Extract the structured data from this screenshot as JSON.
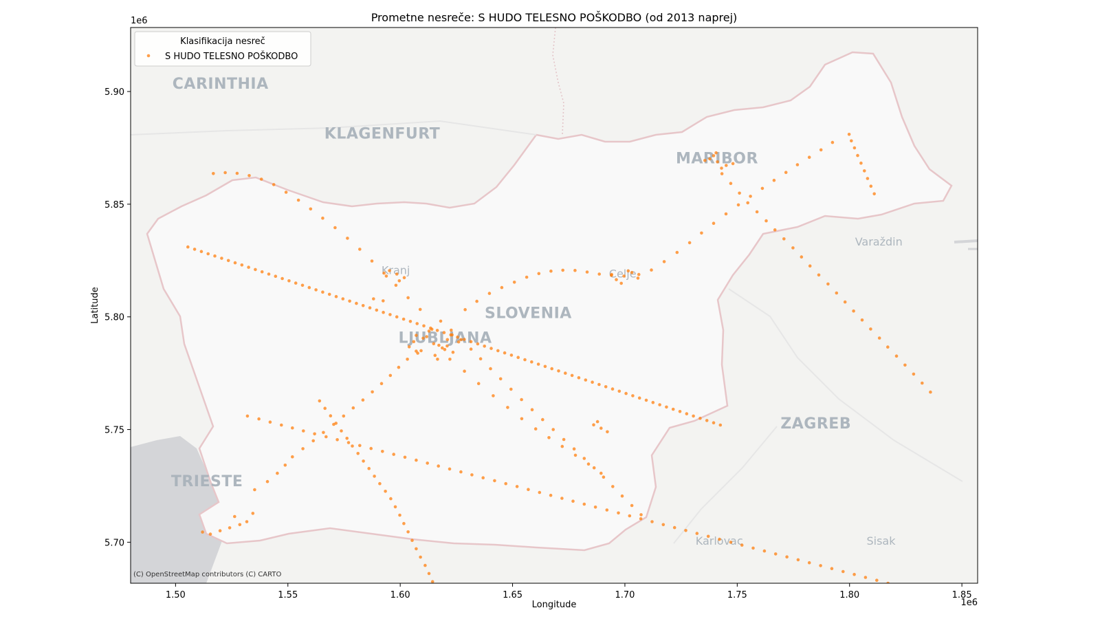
{
  "chart_data": {
    "type": "scatter",
    "title": "Prometne nesreče: S HUDO TELESNO POŠKODBO (od 2013 naprej)",
    "xlabel": "Longitude",
    "ylabel": "Latitude",
    "x_offset_label": "1e6",
    "y_offset_label": "1e6",
    "xlim": [
      1.48,
      1.857
    ],
    "ylim": [
      5.6818,
      5.9284
    ],
    "xticks": [
      1.5,
      1.55,
      1.6,
      1.65,
      1.7,
      1.75,
      1.8,
      1.85
    ],
    "xtick_labels": [
      "1.50",
      "1.55",
      "1.60",
      "1.65",
      "1.70",
      "1.75",
      "1.80",
      "1.85"
    ],
    "yticks": [
      5.7,
      5.75,
      5.8,
      5.85,
      5.9
    ],
    "ytick_labels": [
      "5.70",
      "5.75",
      "5.80",
      "5.85",
      "5.90"
    ],
    "grid": false,
    "legend": {
      "title": "Klasifikacija nesreč",
      "position": "top-left",
      "entries": [
        "S HUDO TELESNO POŠKODBO"
      ]
    },
    "attribution": "(C) OpenStreetMap contributors (C) CARTO",
    "basemap_labels": [
      {
        "text": "CARINTHIA",
        "x": 1.52,
        "y": 5.9013
      },
      {
        "text": "KLAGENFURT",
        "x": 1.592,
        "y": 5.8791
      },
      {
        "text": "MARIBOR",
        "x": 1.741,
        "y": 5.8681
      },
      {
        "text": "Varaždin",
        "x": 1.813,
        "y": 5.8317
      },
      {
        "text": "SLOVENIA",
        "x": 1.657,
        "y": 5.7995
      },
      {
        "text": "LJUBLJANA",
        "x": 1.62,
        "y": 5.7885
      },
      {
        "text": "Kranj",
        "x": 1.598,
        "y": 5.819
      },
      {
        "text": "Celje",
        "x": 1.699,
        "y": 5.8174
      },
      {
        "text": "ZAGREB",
        "x": 1.785,
        "y": 5.7505
      },
      {
        "text": "TRIESTE",
        "x": 1.514,
        "y": 5.7248
      },
      {
        "text": "Karlovac",
        "x": 1.742,
        "y": 5.6989
      },
      {
        "text": "Sisak",
        "x": 1.814,
        "y": 5.6989
      }
    ],
    "series": [
      {
        "name": "S HUDO TELESNO POŠKODBO",
        "color": "#ff7f0e",
        "x": [
          1.6149,
          1.6102,
          1.6187,
          1.6071,
          1.6235,
          1.6128,
          1.6172,
          1.6093,
          1.621,
          1.6155,
          1.604,
          1.626,
          1.6118,
          1.6198,
          1.6078,
          1.6141,
          1.6231,
          1.606,
          1.6166,
          1.6209,
          1.7412,
          1.7378,
          1.7451,
          1.7395,
          1.743,
          1.7356,
          1.7481,
          1.7406,
          1.6996,
          1.7031,
          1.6962,
          1.7015,
          1.6941,
          1.7058,
          1.6984,
          1.5985,
          1.6018,
          1.5952,
          1.5996,
          1.5938,
          1.5924,
          1.5881,
          1.6894,
          1.6861,
          1.6922,
          1.6878,
          1.5241,
          1.5286,
          1.5198,
          1.5317,
          1.5155,
          1.5263,
          1.512,
          1.5344,
          1.5352,
          1.5409,
          1.5453,
          1.5488,
          1.552,
          1.5567,
          1.5613,
          1.5658,
          1.5704,
          1.5748,
          1.5791,
          1.5834,
          1.5876,
          1.5917,
          1.5956,
          1.5993,
          1.6032,
          1.6071,
          1.6289,
          1.6341,
          1.6397,
          1.6452,
          1.6508,
          1.6563,
          1.6617,
          1.6671,
          1.6724,
          1.6778,
          1.6832,
          1.6886,
          1.694,
          1.7062,
          1.7118,
          1.7175,
          1.7232,
          1.7288,
          1.7341,
          1.7395,
          1.745,
          1.7505,
          1.7559,
          1.7612,
          1.7664,
          1.7717,
          1.7768,
          1.7821,
          1.7873,
          1.7924,
          1.6221,
          1.6286,
          1.6349,
          1.6414,
          1.6478,
          1.6541,
          1.6603,
          1.6662,
          1.6721,
          1.678,
          1.6838,
          1.6894,
          1.6089,
          1.6035,
          1.5981,
          1.5928,
          1.5874,
          1.582,
          1.5765,
          1.571,
          1.5655,
          1.5601,
          1.5547,
          1.5492,
          1.5437,
          1.5382,
          1.5328,
          1.5274,
          1.5221,
          1.5168,
          1.618,
          1.6227,
          1.6271,
          1.6315,
          1.6358,
          1.6402,
          1.6447,
          1.6493,
          1.654,
          1.6587,
          1.6634,
          1.6681,
          1.6728,
          1.6774,
          1.6819,
          1.6863,
          1.6905,
          1.6946,
          1.6988,
          1.7031,
          1.7072,
          1.7432,
          1.7471,
          1.751,
          1.7547,
          1.7588,
          1.7629,
          1.7668,
          1.7708,
          1.7748,
          1.7786,
          1.7824,
          1.7863,
          1.7904,
          1.7942,
          1.798,
          1.8018,
          1.8056,
          1.8094,
          1.8133,
          1.817,
          1.8209,
          1.8247,
          1.8285,
          1.8323,
          1.836,
          1.7998,
          1.8008,
          1.8022,
          1.8036,
          1.8051,
          1.8066,
          1.808,
          1.8095,
          1.811,
          1.5641,
          1.5665,
          1.569,
          1.5714,
          1.5738,
          1.5763,
          1.5787,
          1.5812,
          1.5836,
          1.5861,
          1.5885,
          1.5909,
          1.5934,
          1.5958,
          1.5978,
          1.5998,
          1.6016,
          1.6035,
          1.6053,
          1.6071,
          1.609,
          1.6111,
          1.6128,
          1.6144,
          1.532,
          1.5371,
          1.5421,
          1.5471,
          1.552,
          1.5569,
          1.5619,
          1.567,
          1.572,
          1.577,
          1.582,
          1.587,
          1.5921,
          1.5971,
          1.6021,
          1.6071,
          1.6121,
          1.617,
          1.622,
          1.627,
          1.6319,
          1.6369,
          1.642,
          1.647,
          1.652,
          1.657,
          1.662,
          1.667,
          1.672,
          1.6769,
          1.6819,
          1.6869,
          1.692,
          1.6971,
          1.7021,
          1.7071,
          1.7121,
          1.7171,
          1.7221,
          1.7271,
          1.7321,
          1.7371,
          1.7421,
          1.7471,
          1.7521,
          1.7571,
          1.7621,
          1.7671,
          1.7721,
          1.7771,
          1.7821,
          1.7871,
          1.7921,
          1.7971,
          1.8021,
          1.8071,
          1.8121,
          1.8171,
          1.8221,
          1.8271,
          1.8321,
          1.5055,
          1.5085,
          1.5115,
          1.5145,
          1.5175,
          1.5205,
          1.5235,
          1.5265,
          1.5295,
          1.5325,
          1.5355,
          1.5385,
          1.5415,
          1.5445,
          1.5475,
          1.5505,
          1.5535,
          1.5565,
          1.5595,
          1.5625,
          1.5655,
          1.5685,
          1.5715,
          1.5745,
          1.5775,
          1.5805,
          1.5835,
          1.5865,
          1.5895,
          1.5925,
          1.5955,
          1.5985,
          1.6015,
          1.6045,
          1.6075,
          1.6105,
          1.6135,
          1.6165,
          1.6195,
          1.6225,
          1.6255,
          1.6285,
          1.6315,
          1.6345,
          1.6375,
          1.6405,
          1.6435,
          1.6465,
          1.6495,
          1.6525,
          1.6555,
          1.6585,
          1.6615,
          1.6645,
          1.6675,
          1.6705,
          1.6735,
          1.6765,
          1.6795,
          1.6825,
          1.6855,
          1.6885,
          1.6915,
          1.6945,
          1.6975,
          1.7005,
          1.7035,
          1.7065,
          1.7095,
          1.7125,
          1.7155,
          1.7185,
          1.7215,
          1.7245,
          1.7275,
          1.7305,
          1.7335,
          1.7365,
          1.7395,
          1.7425
        ],
        "y": [
          5.7881,
          5.7905,
          5.7862,
          5.7918,
          5.7843,
          5.7937,
          5.7874,
          5.785,
          5.7899,
          5.7829,
          5.7867,
          5.7889,
          5.7912,
          5.7855,
          5.7839,
          5.7945,
          5.792,
          5.789,
          5.7812,
          5.7871,
          5.8688,
          5.8701,
          5.8672,
          5.8715,
          5.866,
          5.8694,
          5.868,
          5.8728,
          5.8181,
          5.8197,
          5.8165,
          5.8204,
          5.8188,
          5.8172,
          5.8149,
          5.819,
          5.8174,
          5.8205,
          5.816,
          5.8181,
          5.8071,
          5.808,
          5.7506,
          5.7521,
          5.749,
          5.7535,
          5.7064,
          5.7078,
          5.7051,
          5.7091,
          5.7036,
          5.7114,
          5.7045,
          5.7128,
          5.7233,
          5.7269,
          5.7306,
          5.7342,
          5.7379,
          5.7415,
          5.745,
          5.7487,
          5.7523,
          5.756,
          5.7596,
          5.7631,
          5.7667,
          5.7704,
          5.774,
          5.7776,
          5.7812,
          5.7848,
          5.8032,
          5.8069,
          5.8104,
          5.813,
          5.8154,
          5.8176,
          5.8192,
          5.8203,
          5.8207,
          5.8206,
          5.8199,
          5.819,
          5.8184,
          5.8188,
          5.8208,
          5.8245,
          5.8286,
          5.8329,
          5.8372,
          5.8415,
          5.8457,
          5.8497,
          5.8535,
          5.857,
          5.8606,
          5.8641,
          5.8675,
          5.8708,
          5.8741,
          5.8774,
          5.7812,
          5.7759,
          5.7704,
          5.765,
          5.7598,
          5.7548,
          5.7503,
          5.7464,
          5.7425,
          5.7386,
          5.7347,
          5.7306,
          5.8033,
          5.8085,
          5.814,
          5.8194,
          5.8248,
          5.83,
          5.8349,
          5.8396,
          5.8438,
          5.8479,
          5.8518,
          5.8553,
          5.8587,
          5.8611,
          5.8627,
          5.8637,
          5.864,
          5.8636,
          5.7981,
          5.7941,
          5.7899,
          5.7857,
          5.7814,
          5.777,
          5.7725,
          5.7679,
          5.7633,
          5.7588,
          5.7544,
          5.75,
          5.7456,
          5.7414,
          5.7372,
          5.733,
          5.7289,
          5.7247,
          5.7205,
          5.7163,
          5.7122,
          5.8635,
          5.8592,
          5.8549,
          5.8506,
          5.8466,
          5.8426,
          5.8386,
          5.8346,
          5.8306,
          5.8266,
          5.8226,
          5.8186,
          5.8146,
          5.8106,
          5.8066,
          5.8026,
          5.7986,
          5.7946,
          5.7906,
          5.7866,
          5.7826,
          5.7786,
          5.7746,
          5.7706,
          5.7666,
          5.881,
          5.8781,
          5.875,
          5.8716,
          5.8682,
          5.8648,
          5.8614,
          5.858,
          5.8546,
          5.7627,
          5.7594,
          5.7561,
          5.7528,
          5.7494,
          5.7461,
          5.7427,
          5.7394,
          5.736,
          5.7327,
          5.7293,
          5.726,
          5.7226,
          5.7193,
          5.7157,
          5.712,
          5.7083,
          5.7046,
          5.7008,
          5.6971,
          5.6934,
          5.6897,
          5.6861,
          5.6825,
          5.756,
          5.7547,
          5.7533,
          5.752,
          5.7507,
          5.7494,
          5.7481,
          5.7468,
          5.7455,
          5.7442,
          5.7429,
          5.7416,
          5.7403,
          5.739,
          5.7377,
          5.7364,
          5.7351,
          5.7338,
          5.7325,
          5.7312,
          5.7299,
          5.7286,
          5.7273,
          5.726,
          5.7247,
          5.7234,
          5.7221,
          5.7208,
          5.7195,
          5.7182,
          5.7169,
          5.7156,
          5.7143,
          5.713,
          5.7117,
          5.7104,
          5.7091,
          5.7078,
          5.7065,
          5.7052,
          5.7039,
          5.7026,
          5.7013,
          5.7,
          5.6987,
          5.6974,
          5.6961,
          5.6948,
          5.6935,
          5.6922,
          5.6909,
          5.6896,
          5.6883,
          5.687,
          5.6857,
          5.6844,
          5.6831,
          5.6818,
          5.6805,
          5.6792,
          5.6779,
          5.831,
          5.83,
          5.829,
          5.828,
          5.827,
          5.826,
          5.825,
          5.824,
          5.823,
          5.822,
          5.821,
          5.82,
          5.819,
          5.818,
          5.817,
          5.816,
          5.815,
          5.814,
          5.813,
          5.812,
          5.811,
          5.81,
          5.809,
          5.808,
          5.807,
          5.806,
          5.805,
          5.804,
          5.803,
          5.802,
          5.801,
          5.8,
          5.799,
          5.798,
          5.797,
          5.796,
          5.795,
          5.794,
          5.793,
          5.792,
          5.791,
          5.79,
          5.789,
          5.788,
          5.787,
          5.786,
          5.785,
          5.784,
          5.783,
          5.782,
          5.781,
          5.78,
          5.779,
          5.778,
          5.777,
          5.776,
          5.775,
          5.774,
          5.773,
          5.772,
          5.771,
          5.77,
          5.769,
          5.768,
          5.767,
          5.766,
          5.765,
          5.764,
          5.763,
          5.762,
          5.761,
          5.76,
          5.759,
          5.758,
          5.757,
          5.756,
          5.755,
          5.754,
          5.753,
          5.752
        ]
      }
    ]
  }
}
